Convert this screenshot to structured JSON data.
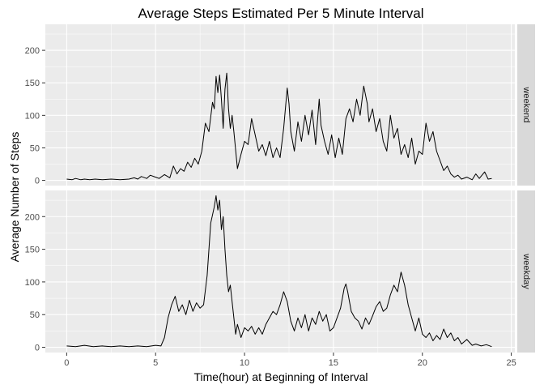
{
  "chart_data": {
    "type": "line",
    "title": "Average Steps Estimated Per 5 Minute Interval",
    "xlabel": "Time(hour) at Beginning of Interval",
    "ylabel": "Average Number of Steps",
    "xlim": [
      -1.2,
      25.2
    ],
    "ylim": [
      -8,
      240
    ],
    "x_ticks": [
      0,
      5,
      10,
      15,
      20,
      25
    ],
    "y_ticks": [
      0,
      50,
      100,
      150,
      200
    ],
    "grid": true,
    "facet_strip_position": "right",
    "colors": {
      "panel": "#ebebeb",
      "grid": "#ffffff",
      "strip": "#d9d9d9",
      "line": "#000000"
    },
    "series": [
      {
        "name": "weekend",
        "points": [
          [
            0,
            2
          ],
          [
            0.3,
            1
          ],
          [
            0.5,
            3
          ],
          [
            0.8,
            1
          ],
          [
            1,
            2
          ],
          [
            1.3,
            1
          ],
          [
            1.6,
            2
          ],
          [
            2,
            1
          ],
          [
            2.5,
            2
          ],
          [
            3,
            1
          ],
          [
            3.5,
            2
          ],
          [
            3.8,
            4
          ],
          [
            4,
            2
          ],
          [
            4.2,
            6
          ],
          [
            4.5,
            3
          ],
          [
            4.7,
            8
          ],
          [
            5,
            5
          ],
          [
            5.2,
            3
          ],
          [
            5.5,
            9
          ],
          [
            5.8,
            4
          ],
          [
            6,
            22
          ],
          [
            6.2,
            10
          ],
          [
            6.4,
            18
          ],
          [
            6.6,
            14
          ],
          [
            6.8,
            28
          ],
          [
            7,
            20
          ],
          [
            7.2,
            34
          ],
          [
            7.4,
            25
          ],
          [
            7.6,
            45
          ],
          [
            7.8,
            88
          ],
          [
            8,
            75
          ],
          [
            8.2,
            120
          ],
          [
            8.3,
            110
          ],
          [
            8.4,
            160
          ],
          [
            8.5,
            135
          ],
          [
            8.6,
            162
          ],
          [
            8.7,
            125
          ],
          [
            8.8,
            80
          ],
          [
            8.9,
            140
          ],
          [
            9,
            165
          ],
          [
            9.1,
            110
          ],
          [
            9.2,
            80
          ],
          [
            9.3,
            100
          ],
          [
            9.4,
            75
          ],
          [
            9.6,
            18
          ],
          [
            9.8,
            40
          ],
          [
            10,
            60
          ],
          [
            10.2,
            55
          ],
          [
            10.4,
            95
          ],
          [
            10.6,
            70
          ],
          [
            10.8,
            45
          ],
          [
            11,
            55
          ],
          [
            11.2,
            38
          ],
          [
            11.4,
            60
          ],
          [
            11.6,
            35
          ],
          [
            11.8,
            50
          ],
          [
            12,
            35
          ],
          [
            12.2,
            80
          ],
          [
            12.4,
            142
          ],
          [
            12.5,
            118
          ],
          [
            12.6,
            75
          ],
          [
            12.8,
            45
          ],
          [
            13,
            90
          ],
          [
            13.2,
            60
          ],
          [
            13.4,
            100
          ],
          [
            13.6,
            70
          ],
          [
            13.8,
            108
          ],
          [
            14,
            55
          ],
          [
            14.2,
            125
          ],
          [
            14.3,
            85
          ],
          [
            14.5,
            60
          ],
          [
            14.7,
            40
          ],
          [
            14.9,
            70
          ],
          [
            15.1,
            35
          ],
          [
            15.3,
            65
          ],
          [
            15.5,
            40
          ],
          [
            15.7,
            95
          ],
          [
            15.9,
            110
          ],
          [
            16.1,
            90
          ],
          [
            16.3,
            125
          ],
          [
            16.5,
            100
          ],
          [
            16.7,
            145
          ],
          [
            16.9,
            118
          ],
          [
            17,
            90
          ],
          [
            17.2,
            110
          ],
          [
            17.4,
            75
          ],
          [
            17.6,
            95
          ],
          [
            17.8,
            60
          ],
          [
            18,
            45
          ],
          [
            18.2,
            100
          ],
          [
            18.4,
            65
          ],
          [
            18.6,
            80
          ],
          [
            18.8,
            40
          ],
          [
            19,
            55
          ],
          [
            19.2,
            35
          ],
          [
            19.4,
            65
          ],
          [
            19.6,
            25
          ],
          [
            19.8,
            45
          ],
          [
            20,
            40
          ],
          [
            20.2,
            88
          ],
          [
            20.4,
            60
          ],
          [
            20.6,
            75
          ],
          [
            20.8,
            45
          ],
          [
            21,
            30
          ],
          [
            21.2,
            15
          ],
          [
            21.4,
            22
          ],
          [
            21.6,
            10
          ],
          [
            21.8,
            5
          ],
          [
            22,
            8
          ],
          [
            22.2,
            2
          ],
          [
            22.5,
            5
          ],
          [
            22.8,
            1
          ],
          [
            23,
            10
          ],
          [
            23.2,
            3
          ],
          [
            23.5,
            13
          ],
          [
            23.7,
            2
          ],
          [
            23.9,
            3
          ]
        ]
      },
      {
        "name": "weekday",
        "points": [
          [
            0,
            2
          ],
          [
            0.5,
            1
          ],
          [
            1,
            3
          ],
          [
            1.5,
            1
          ],
          [
            2,
            2
          ],
          [
            2.5,
            1
          ],
          [
            3,
            2
          ],
          [
            3.5,
            1
          ],
          [
            4,
            2
          ],
          [
            4.5,
            1
          ],
          [
            5,
            3
          ],
          [
            5.3,
            2
          ],
          [
            5.5,
            15
          ],
          [
            5.7,
            45
          ],
          [
            5.9,
            65
          ],
          [
            6.1,
            78
          ],
          [
            6.3,
            55
          ],
          [
            6.5,
            65
          ],
          [
            6.7,
            50
          ],
          [
            6.9,
            72
          ],
          [
            7.1,
            55
          ],
          [
            7.3,
            68
          ],
          [
            7.5,
            60
          ],
          [
            7.7,
            65
          ],
          [
            7.9,
            110
          ],
          [
            8.1,
            190
          ],
          [
            8.3,
            215
          ],
          [
            8.4,
            232
          ],
          [
            8.5,
            210
          ],
          [
            8.6,
            225
          ],
          [
            8.7,
            180
          ],
          [
            8.8,
            200
          ],
          [
            8.9,
            150
          ],
          [
            9,
            110
          ],
          [
            9.1,
            85
          ],
          [
            9.2,
            95
          ],
          [
            9.4,
            45
          ],
          [
            9.5,
            20
          ],
          [
            9.6,
            35
          ],
          [
            9.8,
            15
          ],
          [
            10,
            30
          ],
          [
            10.2,
            25
          ],
          [
            10.4,
            32
          ],
          [
            10.6,
            20
          ],
          [
            10.8,
            30
          ],
          [
            11,
            20
          ],
          [
            11.2,
            35
          ],
          [
            11.4,
            45
          ],
          [
            11.6,
            55
          ],
          [
            11.8,
            50
          ],
          [
            12,
            65
          ],
          [
            12.2,
            85
          ],
          [
            12.4,
            70
          ],
          [
            12.6,
            40
          ],
          [
            12.8,
            25
          ],
          [
            13,
            45
          ],
          [
            13.2,
            30
          ],
          [
            13.4,
            50
          ],
          [
            13.6,
            25
          ],
          [
            13.8,
            45
          ],
          [
            14,
            35
          ],
          [
            14.2,
            55
          ],
          [
            14.4,
            40
          ],
          [
            14.6,
            50
          ],
          [
            14.8,
            25
          ],
          [
            15,
            30
          ],
          [
            15.2,
            45
          ],
          [
            15.4,
            60
          ],
          [
            15.6,
            90
          ],
          [
            15.7,
            97
          ],
          [
            15.8,
            85
          ],
          [
            16,
            55
          ],
          [
            16.2,
            45
          ],
          [
            16.4,
            40
          ],
          [
            16.6,
            28
          ],
          [
            16.8,
            45
          ],
          [
            17,
            35
          ],
          [
            17.2,
            48
          ],
          [
            17.4,
            62
          ],
          [
            17.6,
            70
          ],
          [
            17.8,
            55
          ],
          [
            18,
            60
          ],
          [
            18.2,
            80
          ],
          [
            18.4,
            95
          ],
          [
            18.6,
            85
          ],
          [
            18.8,
            115
          ],
          [
            19,
            95
          ],
          [
            19.2,
            65
          ],
          [
            19.4,
            45
          ],
          [
            19.6,
            25
          ],
          [
            19.8,
            45
          ],
          [
            20,
            20
          ],
          [
            20.2,
            15
          ],
          [
            20.4,
            22
          ],
          [
            20.6,
            10
          ],
          [
            20.8,
            18
          ],
          [
            21,
            12
          ],
          [
            21.2,
            28
          ],
          [
            21.4,
            15
          ],
          [
            21.6,
            22
          ],
          [
            21.8,
            10
          ],
          [
            22,
            15
          ],
          [
            22.2,
            5
          ],
          [
            22.5,
            12
          ],
          [
            22.8,
            3
          ],
          [
            23,
            5
          ],
          [
            23.3,
            2
          ],
          [
            23.6,
            4
          ],
          [
            23.9,
            1
          ]
        ]
      }
    ]
  }
}
